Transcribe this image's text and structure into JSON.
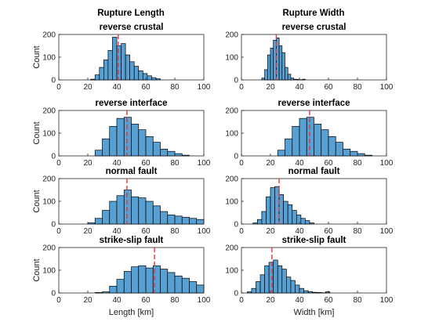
{
  "figure": {
    "col_titles": [
      "Rupture Length",
      "Rupture Width"
    ],
    "xlabels": [
      "Length [km]",
      "Width [km]"
    ],
    "ylabel": "Count",
    "bar_color": "#56a0d3",
    "median_color": "#e8363c"
  },
  "chart_data": [
    {
      "type": "histogram",
      "title": "reverse crustal",
      "column_title": "Rupture Length",
      "xlim": [
        0,
        100
      ],
      "ylim": [
        0,
        200
      ],
      "xticks": [
        0,
        20,
        40,
        60,
        80,
        100
      ],
      "yticks": [
        0,
        100,
        200
      ],
      "xlabel": "",
      "ylabel": "Count",
      "bin_edges": [
        22,
        25,
        28,
        31,
        34,
        37,
        40,
        43,
        46,
        49,
        52,
        55,
        58,
        61,
        64,
        67,
        70
      ],
      "counts": [
        3,
        22,
        55,
        88,
        130,
        188,
        150,
        160,
        110,
        80,
        60,
        40,
        28,
        18,
        10,
        5
      ],
      "median": 41
    },
    {
      "type": "histogram",
      "title": "reverse crustal",
      "column_title": "Rupture Width",
      "xlim": [
        0,
        100
      ],
      "ylim": [
        0,
        200
      ],
      "xticks": [
        0,
        20,
        40,
        60,
        80,
        100
      ],
      "yticks": [
        0,
        100,
        200
      ],
      "xlabel": "",
      "ylabel": "",
      "bin_edges": [
        14,
        16,
        18,
        20,
        22,
        24,
        26,
        28,
        30,
        32,
        34,
        36,
        38,
        40,
        42,
        44
      ],
      "counts": [
        8,
        45,
        110,
        140,
        175,
        185,
        150,
        120,
        55,
        25,
        8,
        3,
        2,
        1,
        3
      ],
      "median": 24
    },
    {
      "type": "histogram",
      "title": "reverse interface",
      "column_title": "",
      "xlim": [
        0,
        100
      ],
      "ylim": [
        0,
        200
      ],
      "xticks": [
        0,
        20,
        40,
        60,
        80,
        100
      ],
      "yticks": [
        0,
        100,
        200
      ],
      "xlabel": "",
      "ylabel": "Count",
      "bin_edges": [
        25,
        30,
        35,
        40,
        45,
        50,
        55,
        60,
        65,
        70,
        75,
        80,
        85,
        90
      ],
      "counts": [
        25,
        75,
        130,
        165,
        170,
        140,
        115,
        85,
        60,
        30,
        20,
        10,
        3
      ],
      "median": 47
    },
    {
      "type": "histogram",
      "title": "reverse interface",
      "column_title": "",
      "xlim": [
        0,
        100
      ],
      "ylim": [
        0,
        200
      ],
      "xticks": [
        0,
        20,
        40,
        60,
        80,
        100
      ],
      "yticks": [
        0,
        100,
        200
      ],
      "xlabel": "",
      "ylabel": "",
      "bin_edges": [
        25,
        30,
        35,
        40,
        45,
        50,
        55,
        60,
        65,
        70,
        75,
        80,
        85,
        90
      ],
      "counts": [
        25,
        75,
        130,
        165,
        170,
        140,
        115,
        85,
        60,
        30,
        20,
        10,
        3
      ],
      "median": 47
    },
    {
      "type": "histogram",
      "title": "normal fault",
      "column_title": "",
      "xlim": [
        0,
        100
      ],
      "ylim": [
        0,
        200
      ],
      "xticks": [
        0,
        20,
        40,
        60,
        80,
        100
      ],
      "yticks": [
        0,
        100,
        200
      ],
      "xlabel": "",
      "ylabel": "Count",
      "bin_edges": [
        20,
        25,
        30,
        35,
        40,
        45,
        50,
        55,
        60,
        65,
        70,
        75,
        80,
        85,
        90,
        95,
        100
      ],
      "counts": [
        5,
        25,
        60,
        100,
        125,
        150,
        120,
        115,
        100,
        80,
        55,
        40,
        35,
        30,
        25,
        20
      ],
      "median": 47
    },
    {
      "type": "histogram",
      "title": "normal fault",
      "column_title": "",
      "xlim": [
        0,
        100
      ],
      "ylim": [
        0,
        200
      ],
      "xticks": [
        0,
        20,
        40,
        60,
        80,
        100
      ],
      "yticks": [
        0,
        100,
        200
      ],
      "xlabel": "",
      "ylabel": "",
      "bin_edges": [
        8,
        11,
        14,
        17,
        20,
        23,
        26,
        29,
        32,
        35,
        38,
        41,
        44,
        47,
        50
      ],
      "counts": [
        5,
        20,
        55,
        120,
        160,
        165,
        130,
        100,
        85,
        60,
        40,
        25,
        15,
        5
      ],
      "median": 26
    },
    {
      "type": "histogram",
      "title": "strike-slip fault",
      "column_title": "",
      "xlim": [
        0,
        100
      ],
      "ylim": [
        0,
        200
      ],
      "xticks": [
        0,
        20,
        40,
        60,
        80,
        100
      ],
      "yticks": [
        0,
        100,
        200
      ],
      "xlabel": "Length [km]",
      "ylabel": "Count",
      "bin_edges": [
        25,
        30,
        35,
        40,
        45,
        50,
        55,
        60,
        65,
        70,
        75,
        80,
        85,
        90,
        95,
        100
      ],
      "counts": [
        2,
        5,
        30,
        60,
        95,
        115,
        120,
        110,
        120,
        105,
        90,
        75,
        65,
        50,
        35
      ],
      "median": 66
    },
    {
      "type": "histogram",
      "title": "strike-slip fault",
      "column_title": "",
      "xlim": [
        0,
        100
      ],
      "ylim": [
        0,
        200
      ],
      "xticks": [
        0,
        20,
        40,
        60,
        80,
        100
      ],
      "yticks": [
        0,
        100,
        200
      ],
      "xlabel": "Width [km]",
      "ylabel": "",
      "bin_edges": [
        4,
        7,
        10,
        13,
        16,
        19,
        22,
        25,
        28,
        31,
        34,
        37,
        40,
        43,
        46,
        49,
        52,
        55,
        58,
        61
      ],
      "counts": [
        5,
        20,
        50,
        80,
        120,
        135,
        145,
        120,
        105,
        70,
        55,
        35,
        20,
        10,
        6,
        3,
        2,
        1,
        5
      ],
      "median": 21
    }
  ]
}
